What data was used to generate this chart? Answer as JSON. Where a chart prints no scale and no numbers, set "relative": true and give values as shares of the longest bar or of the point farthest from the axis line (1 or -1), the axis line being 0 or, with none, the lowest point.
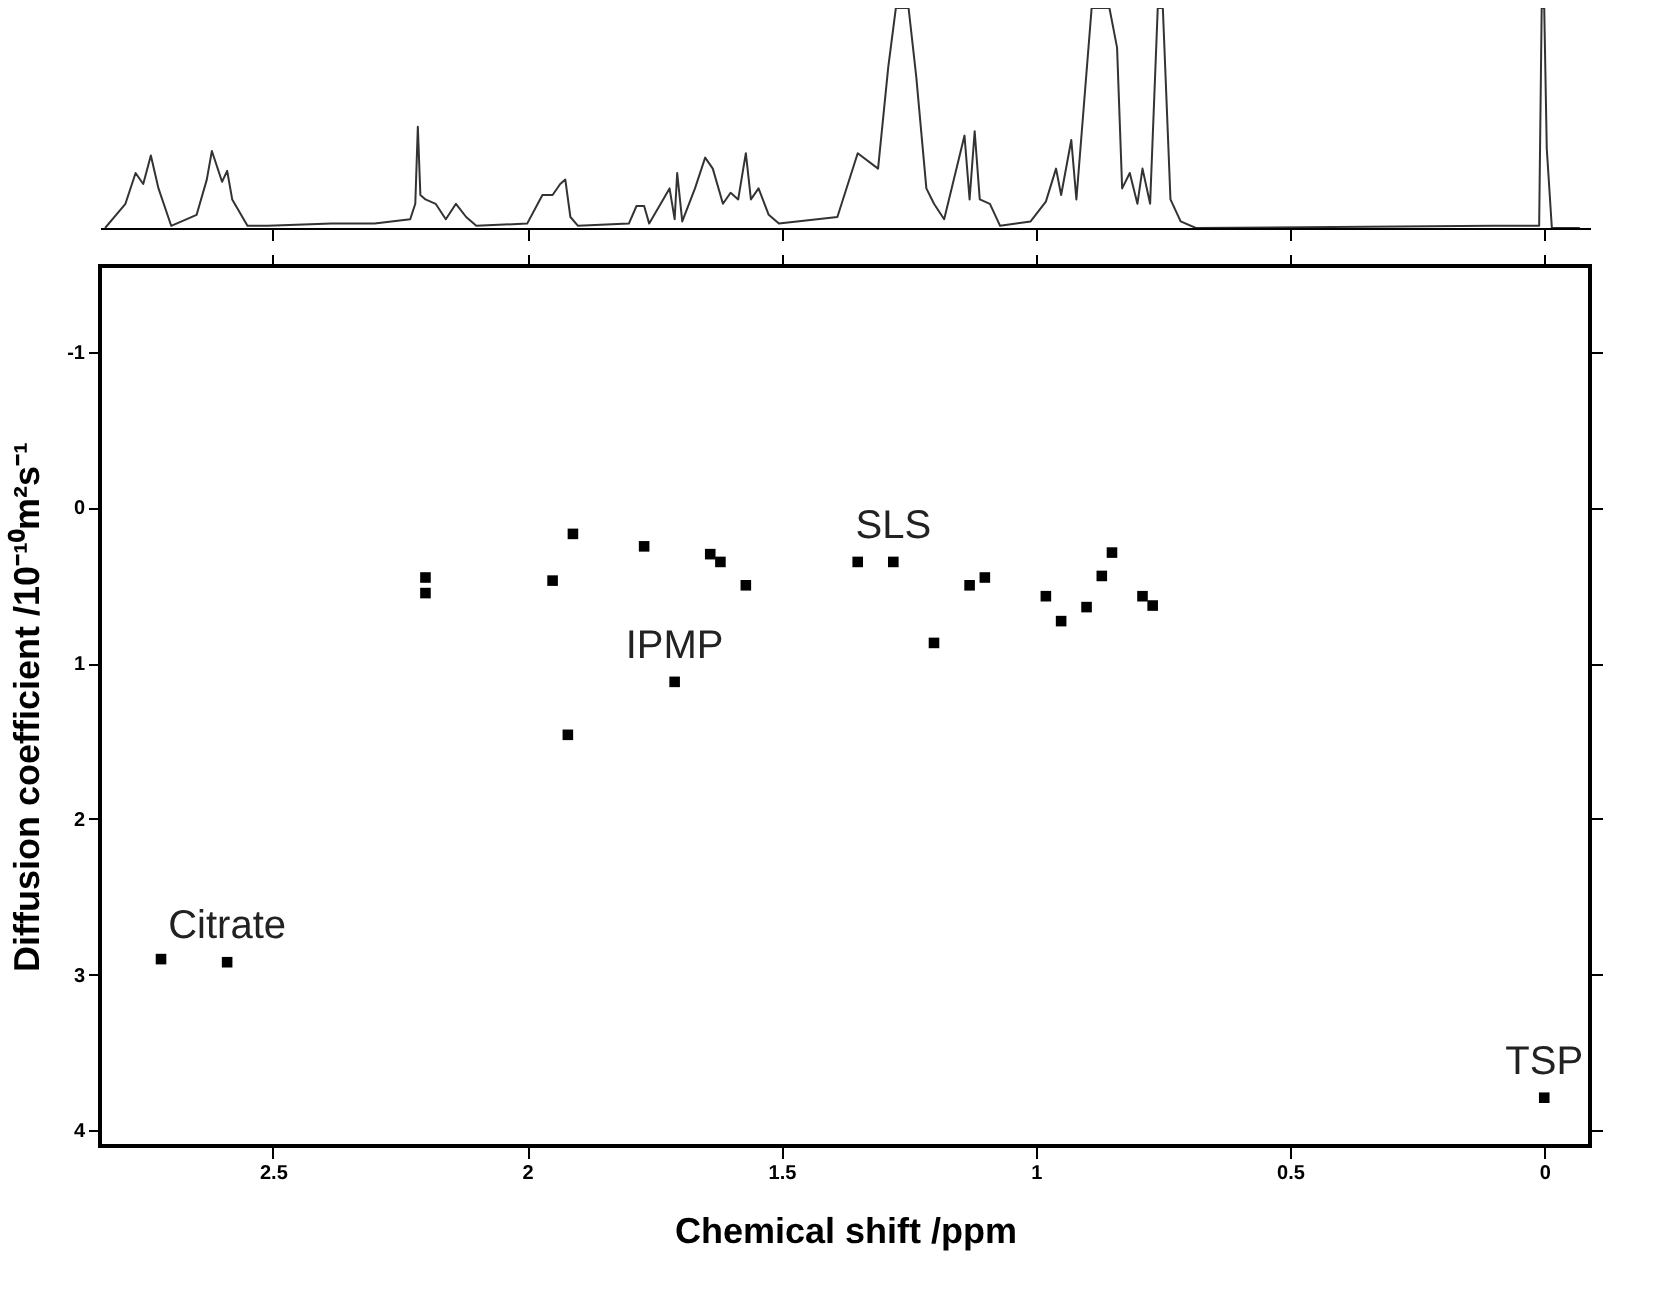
{
  "chart_data": [
    {
      "type": "line",
      "relative": true,
      "xlim": [
        2.84,
        -0.09
      ],
      "xticks": [
        {
          "value": 2.5,
          "label": null
        },
        {
          "value": 2,
          "label": null
        },
        {
          "value": 1.5,
          "label": null
        },
        {
          "value": 1,
          "label": null
        },
        {
          "value": 0.5,
          "label": null
        },
        {
          "value": 0,
          "label": null
        }
      ],
      "tick_labels": false,
      "grid": false,
      "marker": "none",
      "line_style": "solid",
      "series": [
        {
          "color": "#333333",
          "x": [
            2.83,
            2.79,
            2.77,
            2.755,
            2.74,
            2.725,
            2.7,
            2.65,
            2.63,
            2.62,
            2.6,
            2.59,
            2.58,
            2.55,
            2.51,
            2.385,
            2.3,
            2.23,
            2.22,
            2.215,
            2.21,
            2.2,
            2.18,
            2.16,
            2.14,
            2.12,
            2.1,
            2.0,
            1.97,
            1.95,
            1.935,
            1.925,
            1.915,
            1.9,
            1.8,
            1.785,
            1.77,
            1.76,
            1.73,
            1.72,
            1.71,
            1.705,
            1.695,
            1.67,
            1.65,
            1.635,
            1.615,
            1.6,
            1.585,
            1.57,
            1.56,
            1.545,
            1.525,
            1.505,
            1.39,
            1.35,
            1.31,
            1.29,
            1.275,
            1.25,
            1.235,
            1.215,
            1.2,
            1.18,
            1.14,
            1.13,
            1.12,
            1.11,
            1.09,
            1.07,
            1.01,
            0.98,
            0.96,
            0.95,
            0.93,
            0.92,
            0.89,
            0.855,
            0.84,
            0.83,
            0.815,
            0.8,
            0.79,
            0.775,
            0.76,
            0.75,
            0.735,
            0.715,
            0.685,
            0.1,
            0.01,
            0.005,
            0.0,
            -0.005,
            -0.015,
            -0.07
          ],
          "values": [
            0,
            0.11,
            0.25,
            0.2,
            0.33,
            0.18,
            0.01,
            0.06,
            0.22,
            0.35,
            0.21,
            0.26,
            0.13,
            0.01,
            0.01,
            0.02,
            0.02,
            0.04,
            0.11,
            0.46,
            0.15,
            0.13,
            0.11,
            0.04,
            0.11,
            0.05,
            0.01,
            0.02,
            0.15,
            0.15,
            0.2,
            0.22,
            0.05,
            0.01,
            0.02,
            0.1,
            0.1,
            0.02,
            0.14,
            0.18,
            0.04,
            0.25,
            0.03,
            0.18,
            0.32,
            0.27,
            0.11,
            0.16,
            0.13,
            0.34,
            0.13,
            0.18,
            0.06,
            0.02,
            0.05,
            0.34,
            0.27,
            0.73,
            1,
            1,
            0.69,
            0.18,
            0.11,
            0.04,
            0.42,
            0.13,
            0.44,
            0.13,
            0.11,
            0.01,
            0.03,
            0.12,
            0.27,
            0.15,
            0.4,
            0.13,
            1,
            1,
            0.82,
            0.18,
            0.25,
            0.11,
            0.27,
            0.11,
            1,
            1,
            0.13,
            0.03,
            0,
            0.01,
            0.01,
            1,
            1,
            0.36,
            0,
            0
          ]
        }
      ]
    },
    {
      "type": "scatter",
      "xlabel": "Chemical shift /ppm",
      "ylabel": "Diffusion coefficient  /10⁻¹⁰m²s⁻¹",
      "xlim": [
        2.84,
        -0.09
      ],
      "xticks": [
        2.5,
        2,
        1.5,
        1,
        0.5,
        0
      ],
      "ylim": [
        4.1,
        -1.55
      ],
      "yticks": [
        -1,
        0,
        1,
        2,
        3,
        4
      ],
      "grid": false,
      "marker": "square",
      "series": [
        {
          "color": "#000000",
          "x": [
            2.72,
            2.59,
            2.2,
            2.2,
            1.95,
            1.91,
            1.77,
            1.64,
            1.62,
            1.57,
            1.71,
            1.92,
            1.35,
            1.28,
            1.13,
            1.1,
            1.2,
            0.98,
            0.95,
            0.9,
            0.87,
            0.85,
            0.79,
            0.77,
            0.0
          ],
          "values": [
            2.9,
            2.92,
            0.45,
            0.55,
            0.47,
            0.17,
            0.25,
            0.3,
            0.35,
            0.5,
            1.12,
            1.46,
            0.35,
            0.35,
            0.5,
            0.45,
            0.87,
            0.57,
            0.73,
            0.64,
            0.44,
            0.29,
            0.57,
            0.63,
            3.79
          ]
        }
      ],
      "annotations": [
        {
          "text": "Citrate",
          "x": 2.59,
          "y": 2.92
        },
        {
          "text": "SLS",
          "x": 1.28,
          "y": 0.35
        },
        {
          "text": "IPMP",
          "x": 1.71,
          "y": 1.12
        },
        {
          "text": "TSP",
          "x": 0.0,
          "y": 3.79
        }
      ]
    }
  ]
}
